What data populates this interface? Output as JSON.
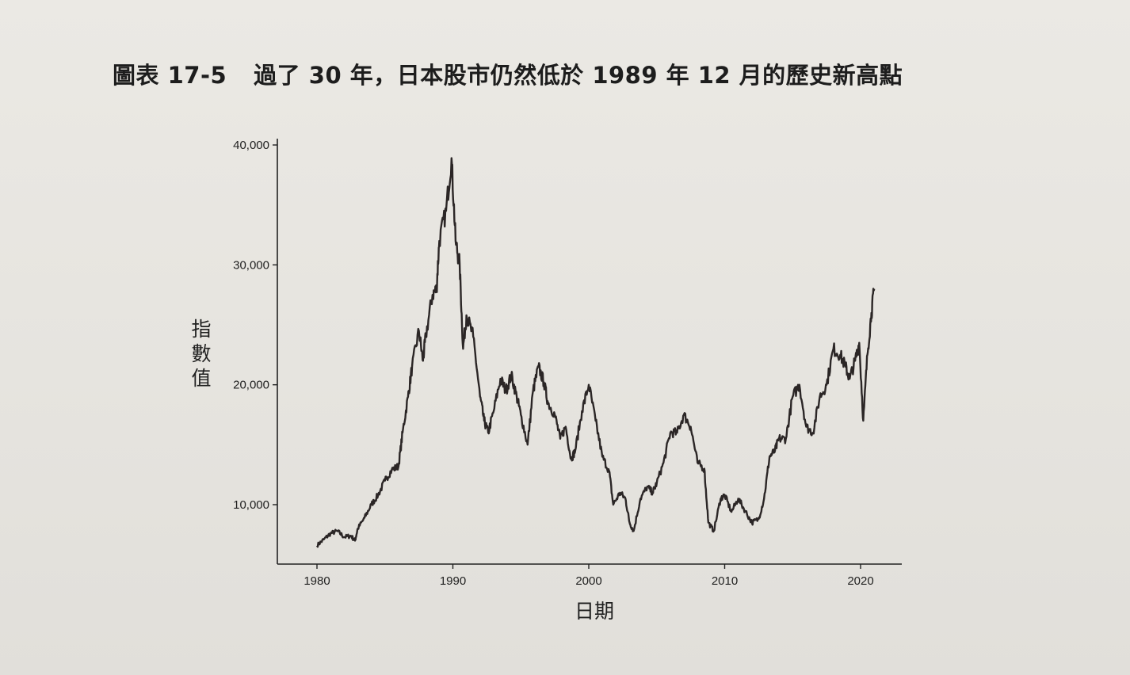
{
  "figure": {
    "label": "圖表 17-5",
    "title": "過了 30 年，日本股市仍然低於 1989 年 12 月的歷史新高點"
  },
  "chart_data": {
    "type": "line",
    "xlabel": "日期",
    "ylabel": "指數值",
    "xlim": [
      1980,
      2023
    ],
    "ylim": [
      6500,
      40500
    ],
    "x_ticks": [
      1980,
      1990,
      2000,
      2010,
      2020
    ],
    "x_tick_labels": [
      "1980",
      "1990",
      "2000",
      "2010",
      "2020"
    ],
    "y_ticks": [
      10000,
      20000,
      30000,
      40000
    ],
    "y_tick_labels": [
      "10,000",
      "20,000",
      "30,000",
      "40,000"
    ],
    "grid": false,
    "legend": "none",
    "line_color": "#2b2626",
    "series": [
      {
        "name": "",
        "x": [
          1980.0,
          1980.5,
          1981.0,
          1981.5,
          1982.0,
          1982.5,
          1982.8,
          1983.0,
          1983.5,
          1984.0,
          1984.5,
          1985.0,
          1985.5,
          1986.0,
          1986.3,
          1986.7,
          1987.0,
          1987.5,
          1987.8,
          1988.0,
          1988.5,
          1988.8,
          1989.0,
          1989.5,
          1989.9,
          1990.2,
          1990.5,
          1990.75,
          1991.0,
          1991.5,
          1992.0,
          1992.3,
          1992.6,
          1993.0,
          1993.5,
          1993.9,
          1994.3,
          1994.7,
          1995.0,
          1995.5,
          1995.9,
          1996.3,
          1996.7,
          1997.0,
          1997.5,
          1997.9,
          1998.3,
          1998.7,
          1999.0,
          1999.5,
          2000.0,
          2000.5,
          2001.0,
          2001.5,
          2001.8,
          2002.3,
          2002.7,
          2003.0,
          2003.3,
          2003.8,
          2004.3,
          2004.7,
          2005.0,
          2005.5,
          2006.0,
          2006.5,
          2007.0,
          2007.5,
          2008.0,
          2008.5,
          2008.8,
          2009.2,
          2009.7,
          2010.0,
          2010.5,
          2011.0,
          2011.5,
          2012.0,
          2012.5,
          2012.9,
          2013.3,
          2013.7,
          2014.0,
          2014.5,
          2015.0,
          2015.5,
          2016.0,
          2016.5,
          2017.0,
          2017.5,
          2018.0,
          2018.5,
          2018.9,
          2019.2,
          2019.6,
          2019.9,
          2020.2,
          2020.5,
          2020.8,
          2021.0
        ],
        "values": [
          6600,
          7100,
          7600,
          7800,
          7300,
          7400,
          7000,
          8000,
          8900,
          10000,
          10800,
          12000,
          12900,
          13200,
          16000,
          19000,
          21500,
          24500,
          22000,
          24000,
          27500,
          28000,
          32000,
          34500,
          38900,
          32000,
          30000,
          23000,
          25800,
          24000,
          19000,
          17000,
          16000,
          17800,
          20500,
          19500,
          20800,
          19000,
          17500,
          15000,
          19500,
          21500,
          20200,
          18500,
          17500,
          15500,
          16500,
          13800,
          14500,
          17800,
          20000,
          17000,
          14000,
          12800,
          10000,
          11000,
          10500,
          8500,
          7800,
          10500,
          11500,
          11000,
          11800,
          13500,
          16000,
          16000,
          17500,
          16500,
          13500,
          13000,
          8500,
          7800,
          10500,
          10800,
          9400,
          10500,
          9500,
          8500,
          8800,
          10500,
          14000,
          14500,
          15500,
          15500,
          19000,
          20000,
          16500,
          16000,
          19000,
          20000,
          23000,
          22500,
          21500,
          20500,
          22000,
          23500,
          17000,
          22500,
          26000,
          28000
        ]
      }
    ]
  }
}
